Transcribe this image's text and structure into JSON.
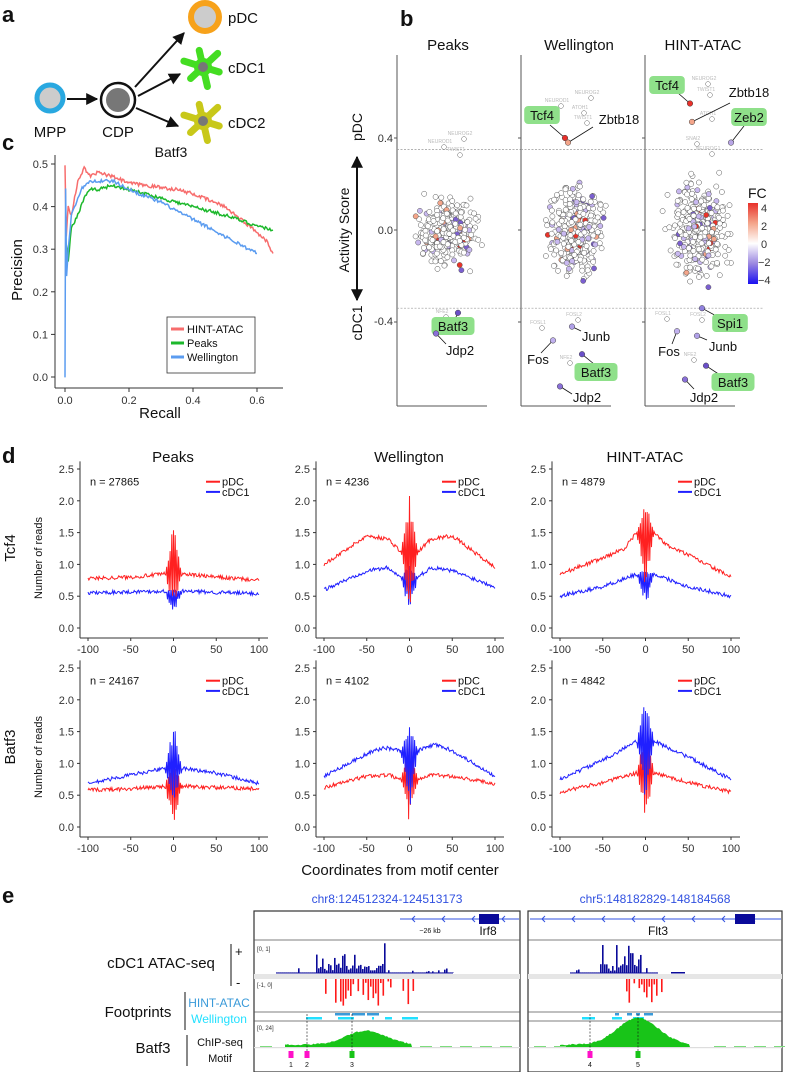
{
  "panel_a": {
    "label": "a",
    "nodes": [
      {
        "label": "MPP",
        "color": "#29a8e0"
      },
      {
        "label": "CDP",
        "color": "#111111"
      },
      {
        "label": "pDC",
        "color": "#f7a21b"
      },
      {
        "label": "cDC1",
        "color": "#44dd22"
      },
      {
        "label": "cDC2",
        "color": "#c8c81a"
      }
    ]
  },
  "panel_b": {
    "label": "b",
    "y_axis_label": "Activity Score",
    "top_label": "pDC",
    "bottom_label": "cDC1",
    "y_ticks": [
      0.4,
      0.0,
      -0.4
    ],
    "y_tick_labels": [
      "0.4",
      "0.0",
      "-0.4"
    ],
    "thresholds": [
      0.35,
      -0.34
    ],
    "colorbar": {
      "title": "FC",
      "ticks": [
        "4",
        "2",
        "0",
        "−2",
        "−4"
      ],
      "colors": [
        "#e8302a",
        "#f4a58a",
        "#ffffff",
        "#9a86e0",
        "#1a10f0"
      ]
    },
    "panels": [
      {
        "title": "Peaks",
        "genes": [
          {
            "name": "Batf3",
            "score": -0.36,
            "highlight": true
          },
          {
            "name": "Jdp2",
            "score": -0.45,
            "highlight": false
          }
        ],
        "faint_labels": [
          "NEUROG2",
          "NEUROD1",
          "TWIST1",
          "NFE2"
        ]
      },
      {
        "title": "Wellington",
        "genes": [
          {
            "name": "Tcf4",
            "score": 0.4,
            "highlight": true
          },
          {
            "name": "Zbtb18",
            "score": 0.38,
            "highlight": false
          },
          {
            "name": "Junb",
            "score": -0.42,
            "highlight": false
          },
          {
            "name": "Fos",
            "score": -0.48,
            "highlight": false
          },
          {
            "name": "Batf3",
            "score": -0.54,
            "highlight": true
          },
          {
            "name": "Jdp2",
            "score": -0.68,
            "highlight": false
          }
        ],
        "faint_labels": [
          "NEUROG2",
          "NEUROD1",
          "ATOH1",
          "TWIST1",
          "FOSL1",
          "FOSL2",
          "NFE2"
        ]
      },
      {
        "title": "HINT-ATAC",
        "genes": [
          {
            "name": "Tcf4",
            "score": 0.55,
            "highlight": true
          },
          {
            "name": "Zbtb18",
            "score": 0.47,
            "highlight": false
          },
          {
            "name": "Zeb2",
            "score": 0.38,
            "highlight": true
          },
          {
            "name": "Spi1",
            "score": -0.34,
            "highlight": true
          },
          {
            "name": "Fos",
            "score": -0.44,
            "highlight": false
          },
          {
            "name": "Junb",
            "score": -0.46,
            "highlight": false
          },
          {
            "name": "Batf3",
            "score": -0.59,
            "highlight": true
          },
          {
            "name": "Jdp2",
            "score": -0.65,
            "highlight": false
          }
        ],
        "faint_labels": [
          "NEUROG2",
          "TWIST1",
          "ATOH1",
          "SNAI2",
          "NEUROG1",
          "FOSL1",
          "FOSL2",
          "NFE2"
        ]
      }
    ]
  },
  "chart_data": [
    {
      "type": "line",
      "panel_label": "c",
      "title": "Batf3",
      "xlabel": "Recall",
      "ylabel": "Precision",
      "xlim": [
        0,
        0.65
      ],
      "ylim": [
        0,
        0.5
      ],
      "x_ticks": [
        "0.0",
        "0.2",
        "0.4",
        "0.6"
      ],
      "y_ticks": [
        "0.0",
        "0.1",
        "0.2",
        "0.3",
        "0.4",
        "0.5"
      ],
      "legend": "bottom-right",
      "series": [
        {
          "name": "HINT-ATAC",
          "color": "#f76d6d",
          "points": [
            [
              0,
              0.5
            ],
            [
              0.004,
              0.33
            ],
            [
              0.01,
              0.4
            ],
            [
              0.02,
              0.38
            ],
            [
              0.04,
              0.46
            ],
            [
              0.06,
              0.49
            ],
            [
              0.08,
              0.47
            ],
            [
              0.1,
              0.48
            ],
            [
              0.15,
              0.47
            ],
            [
              0.2,
              0.455
            ],
            [
              0.3,
              0.445
            ],
            [
              0.35,
              0.44
            ],
            [
              0.4,
              0.43
            ],
            [
              0.5,
              0.4
            ],
            [
              0.55,
              0.37
            ],
            [
              0.6,
              0.34
            ],
            [
              0.63,
              0.32
            ],
            [
              0.65,
              0.29
            ]
          ]
        },
        {
          "name": "Peaks",
          "color": "#1db82c",
          "points": [
            [
              0.003,
              0.32
            ],
            [
              0.01,
              0.27
            ],
            [
              0.02,
              0.35
            ],
            [
              0.04,
              0.38
            ],
            [
              0.06,
              0.42
            ],
            [
              0.08,
              0.44
            ],
            [
              0.1,
              0.44
            ],
            [
              0.15,
              0.45
            ],
            [
              0.2,
              0.44
            ],
            [
              0.3,
              0.42
            ],
            [
              0.4,
              0.4
            ],
            [
              0.5,
              0.38
            ],
            [
              0.6,
              0.355
            ],
            [
              0.65,
              0.345
            ]
          ]
        },
        {
          "name": "Wellington",
          "color": "#5b9cf0",
          "points": [
            [
              0,
              0.0
            ],
            [
              0.002,
              0.44
            ],
            [
              0.005,
              0.24
            ],
            [
              0.01,
              0.3
            ],
            [
              0.02,
              0.38
            ],
            [
              0.05,
              0.44
            ],
            [
              0.08,
              0.46
            ],
            [
              0.1,
              0.46
            ],
            [
              0.15,
              0.46
            ],
            [
              0.2,
              0.44
            ],
            [
              0.3,
              0.41
            ],
            [
              0.4,
              0.37
            ],
            [
              0.5,
              0.33
            ],
            [
              0.6,
              0.29
            ]
          ]
        }
      ]
    },
    {
      "type": "line",
      "panel_label": "d",
      "xlabel": "Coordinates from motif center",
      "ylabel": "Number of reads",
      "xlim": [
        -100,
        100
      ],
      "ylim": [
        0,
        2.5
      ],
      "x_ticks": [
        "-100",
        "-50",
        "0",
        "50",
        "100"
      ],
      "y_ticks": [
        "0.0",
        "0.5",
        "1.0",
        "1.5",
        "2.0",
        "2.5"
      ],
      "columns": [
        "Peaks",
        "Wellington",
        "HINT-ATAC"
      ],
      "rows": [
        "Tcf4",
        "Batf3"
      ],
      "legend": "top-right",
      "series_names": [
        "pDC",
        "cDC1"
      ],
      "series_colors": [
        "#ff2020",
        "#2020ff"
      ],
      "panels": [
        {
          "row": "Tcf4",
          "method": "Peaks",
          "n": "n = 27865",
          "pDC": {
            "profile": [
              [
                -100,
                0.78
              ],
              [
                -50,
                0.8
              ],
              [
                -10,
                0.85
              ],
              [
                10,
                0.85
              ],
              [
                50,
                0.8
              ],
              [
                100,
                0.75
              ]
            ],
            "center_range": [
              0.3,
              1.7
            ]
          },
          "cDC1": {
            "profile": [
              [
                -100,
                0.55
              ],
              [
                -50,
                0.57
              ],
              [
                -10,
                0.58
              ],
              [
                10,
                0.58
              ],
              [
                50,
                0.56
              ],
              [
                100,
                0.54
              ]
            ],
            "center_range": [
              0.2,
              0.6
            ]
          }
        },
        {
          "row": "Tcf4",
          "method": "Wellington",
          "n": "n = 4236",
          "pDC": {
            "profile": [
              [
                -100,
                1.0
              ],
              [
                -50,
                1.45
              ],
              [
                -25,
                1.4
              ],
              [
                -10,
                1.2
              ],
              [
                10,
                1.2
              ],
              [
                25,
                1.4
              ],
              [
                50,
                1.45
              ],
              [
                100,
                0.95
              ]
            ],
            "center_range": [
              0.3,
              2.15
            ]
          },
          "cDC1": {
            "profile": [
              [
                -100,
                0.6
              ],
              [
                -50,
                0.9
              ],
              [
                -25,
                0.95
              ],
              [
                -10,
                0.8
              ],
              [
                10,
                0.8
              ],
              [
                25,
                0.95
              ],
              [
                50,
                0.9
              ],
              [
                100,
                0.65
              ]
            ],
            "center_range": [
              0.2,
              1.0
            ]
          }
        },
        {
          "row": "Tcf4",
          "method": "HINT-ATAC",
          "n": "n = 4879",
          "pDC": {
            "profile": [
              [
                -100,
                0.85
              ],
              [
                -50,
                1.1
              ],
              [
                -25,
                1.25
              ],
              [
                -10,
                1.5
              ],
              [
                10,
                1.5
              ],
              [
                25,
                1.3
              ],
              [
                50,
                1.15
              ],
              [
                100,
                0.8
              ]
            ],
            "center_range": [
              0.5,
              2.0
            ]
          },
          "cDC1": {
            "profile": [
              [
                -100,
                0.5
              ],
              [
                -50,
                0.65
              ],
              [
                -10,
                0.85
              ],
              [
                10,
                0.85
              ],
              [
                50,
                0.65
              ],
              [
                100,
                0.5
              ]
            ],
            "center_range": [
              0.3,
              0.9
            ]
          }
        },
        {
          "row": "Batf3",
          "method": "Peaks",
          "n": "n = 24167",
          "pDC": {
            "profile": [
              [
                -100,
                0.58
              ],
              [
                -50,
                0.6
              ],
              [
                -10,
                0.64
              ],
              [
                10,
                0.64
              ],
              [
                50,
                0.62
              ],
              [
                100,
                0.6
              ]
            ],
            "center_range": [
              0.05,
              1.15
            ]
          },
          "cDC1": {
            "profile": [
              [
                -100,
                0.68
              ],
              [
                -50,
                0.82
              ],
              [
                -10,
                0.92
              ],
              [
                10,
                0.92
              ],
              [
                50,
                0.85
              ],
              [
                100,
                0.68
              ]
            ],
            "center_range": [
              0.3,
              1.67
            ]
          }
        },
        {
          "row": "Batf3",
          "method": "Wellington",
          "n": "n = 4102",
          "pDC": {
            "profile": [
              [
                -100,
                0.62
              ],
              [
                -50,
                0.8
              ],
              [
                -25,
                0.82
              ],
              [
                -10,
                0.75
              ],
              [
                10,
                0.75
              ],
              [
                25,
                0.82
              ],
              [
                50,
                0.8
              ],
              [
                100,
                0.68
              ]
            ],
            "center_range": [
              0.05,
              1.45
            ]
          },
          "cDC1": {
            "profile": [
              [
                -100,
                0.8
              ],
              [
                -50,
                1.15
              ],
              [
                -30,
                1.25
              ],
              [
                -10,
                1.2
              ],
              [
                10,
                1.2
              ],
              [
                30,
                1.3
              ],
              [
                50,
                1.2
              ],
              [
                100,
                0.8
              ]
            ],
            "center_range": [
              0.2,
              1.65
            ]
          }
        },
        {
          "row": "Batf3",
          "method": "HINT-ATAC",
          "n": "n = 4842",
          "pDC": {
            "profile": [
              [
                -100,
                0.55
              ],
              [
                -50,
                0.7
              ],
              [
                -10,
                0.85
              ],
              [
                10,
                0.85
              ],
              [
                50,
                0.7
              ],
              [
                100,
                0.55
              ]
            ],
            "center_range": [
              0.1,
              1.7
            ]
          },
          "cDC1": {
            "profile": [
              [
                -100,
                0.75
              ],
              [
                -50,
                1.05
              ],
              [
                -10,
                1.35
              ],
              [
                10,
                1.35
              ],
              [
                50,
                1.1
              ],
              [
                100,
                0.75
              ]
            ],
            "center_range": [
              0.3,
              2.1
            ]
          }
        }
      ]
    }
  ],
  "panel_e": {
    "label": "e",
    "track_labels": {
      "atac": "cDC1 ATAC-seq",
      "plus": "+",
      "minus": "-",
      "footprints": "Footprints",
      "hint": "HINT-ATAC",
      "wellington": "Wellington",
      "tf": "Batf3",
      "chip": "ChIP-seq",
      "motif": "Motif"
    },
    "colors": {
      "plus": "#0a0a9a",
      "minus": "#ff1a1a",
      "hint": "#3a9ad9",
      "wellington": "#22e0ff",
      "chip": "#18c418",
      "motif_a": "#ff10c8",
      "motif_b": "#18c418",
      "coord": "#3050e0"
    },
    "loci": [
      {
        "coord": "chr8:124512324-124513173",
        "gene": "Irf8",
        "distance": "~26 kb",
        "plus_scale": "[0, 1]",
        "minus_scale": "[-1, 0]",
        "chip_scale": "[0, 24]",
        "motifs": [
          "1",
          "2",
          "3"
        ]
      },
      {
        "coord": "chr5:148182829-148184568",
        "gene": "Flt3",
        "motifs": [
          "4",
          "5"
        ]
      }
    ]
  }
}
